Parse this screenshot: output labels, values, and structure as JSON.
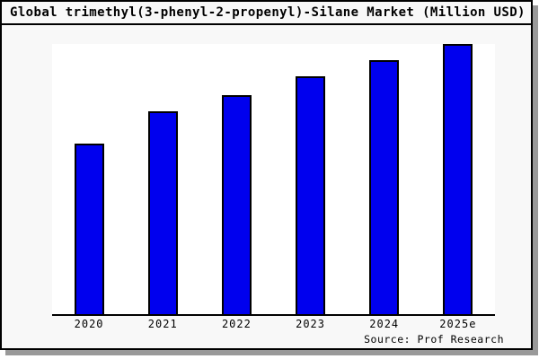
{
  "page": {
    "title": "Global trimethyl(3-phenyl-2-propenyl)-Silane Market (Million USD)",
    "source_credit": "Source: Prof Research"
  },
  "colors": {
    "bar_fill": "#0000ee",
    "bar_border": "#000000",
    "canvas_background": "#f8f8f8",
    "plot_background": "#ffffff",
    "axis_line": "#000000",
    "text": "#000000",
    "shadow": "#999999"
  },
  "chart_data": {
    "type": "bar",
    "title": "Global trimethyl(3-phenyl-2-propenyl)-Silane Market (Million USD)",
    "categories": [
      "2020",
      "2021",
      "2022",
      "2023",
      "2024",
      "2025e"
    ],
    "values": [
      63,
      75,
      81,
      88,
      94,
      100
    ],
    "xlabel": "",
    "ylabel": "",
    "ylim": [
      0,
      100
    ],
    "grid": false,
    "legend_position": "none",
    "y_axis_shown": false,
    "annotation": "Source: Prof Research",
    "value_note": "no y-axis scale printed on chart; values are estimated relative heights with 2025e = 100"
  }
}
